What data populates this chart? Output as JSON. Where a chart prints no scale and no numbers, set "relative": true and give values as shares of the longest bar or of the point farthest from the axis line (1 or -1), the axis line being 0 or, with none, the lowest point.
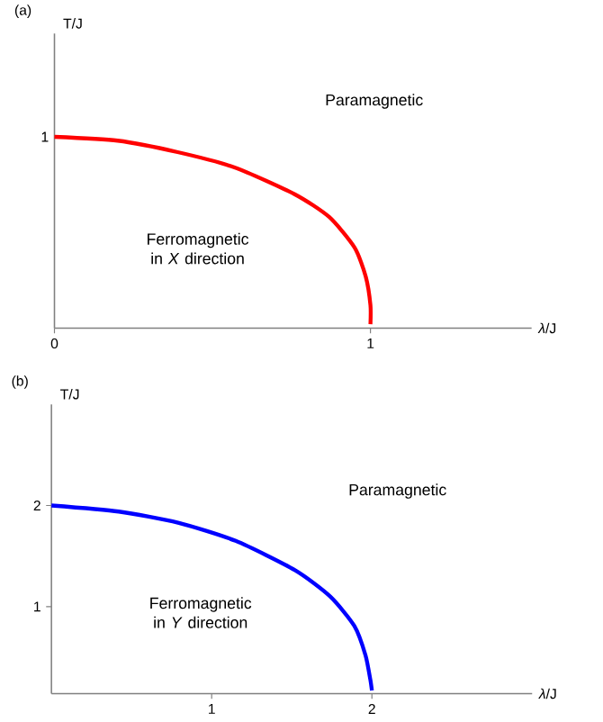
{
  "chart_data": [
    {
      "type": "line",
      "title": "(a)",
      "xlabel": "*λ*/J",
      "ylabel": "T/J",
      "annotations": [
        "Paramagnetic",
        "Ferromagnetic in *X* direction",
        {
          "text": "1",
          "x": 0,
          "y": 1
        }
      ],
      "relative": true,
      "xlim": [
        0,
        1.51
      ],
      "xticks": [
        0,
        1
      ],
      "series": [
        {
          "color": "#ff0000",
          "x": [
            0,
            0.2,
            0.39,
            0.57,
            0.76,
            0.87,
            0.95,
            0.985,
            1.0,
            1.0
          ],
          "values": [
            1.0,
            0.98,
            0.92,
            0.84,
            0.7,
            0.58,
            0.42,
            0.27,
            0.12,
            0.02
          ]
        }
      ]
    },
    {
      "type": "line",
      "title": "(b)",
      "xlabel": "*λ*/J",
      "ylabel": "T/J",
      "annotations": [
        "Paramagnetic",
        "Ferromagnetic in *Y* direction"
      ],
      "xlim": [
        0,
        3.0
      ],
      "ylim": [
        0.14,
        3.0
      ],
      "xticks": [
        1,
        2
      ],
      "yticks": [
        1,
        2
      ],
      "series": [
        {
          "color": "#0000ff",
          "x": [
            0,
            0.42,
            0.79,
            1.15,
            1.52,
            1.74,
            1.89,
            1.96,
            1.99,
            2.0
          ],
          "values": [
            2.0,
            1.94,
            1.83,
            1.65,
            1.36,
            1.1,
            0.81,
            0.52,
            0.28,
            0.17
          ]
        }
      ]
    }
  ]
}
